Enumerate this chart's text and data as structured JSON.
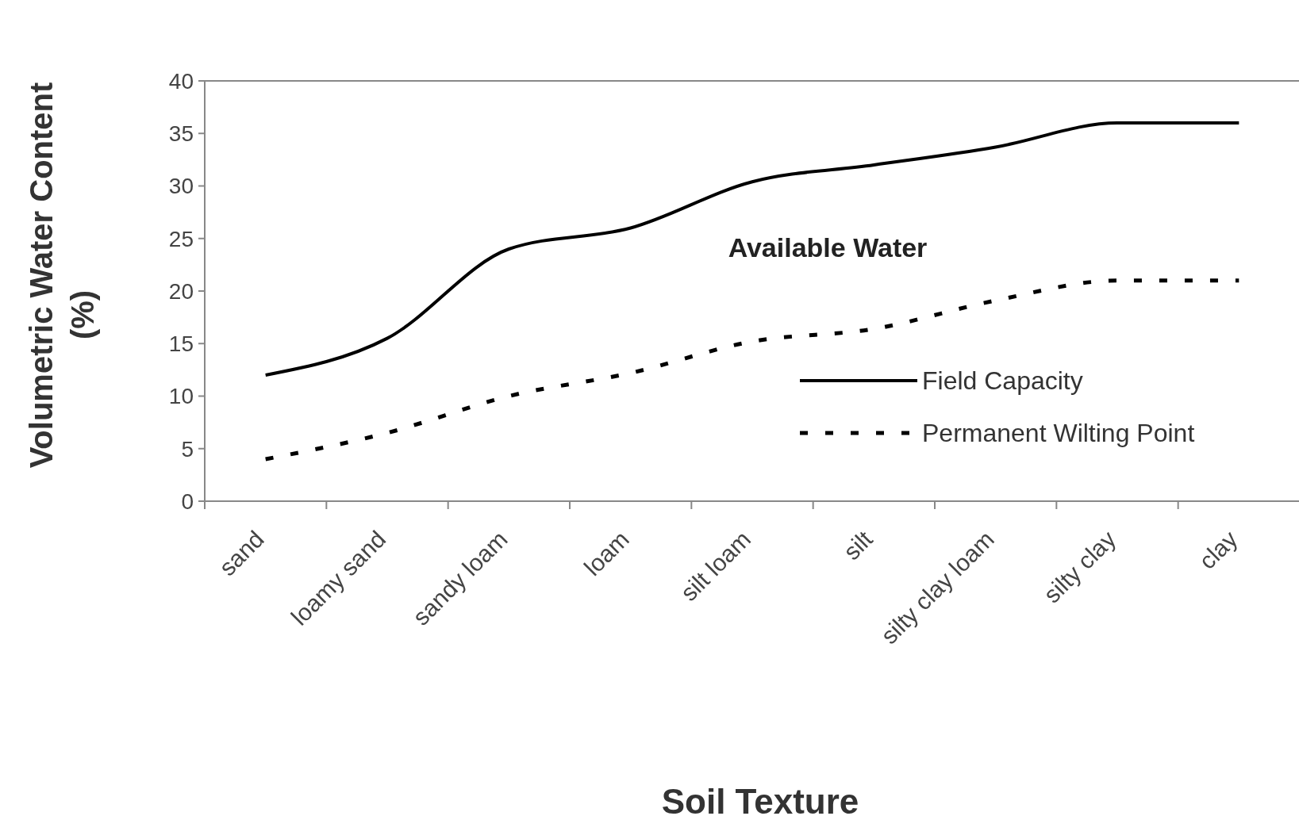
{
  "chart_data": {
    "type": "line",
    "xlabel": "Soil Texture",
    "ylabel": "Volumetric Water Content (%)",
    "categories": [
      "sand",
      "loamy sand",
      "sandy loam",
      "loam",
      "silt loam",
      "silt",
      "silty clay loam",
      "silty clay",
      "clay"
    ],
    "series": [
      {
        "name": "Field Capacity",
        "color": "#000000",
        "line_style": "solid",
        "values": [
          12,
          15.5,
          24,
          26,
          30.4,
          32,
          33.7,
          36,
          36
        ]
      },
      {
        "name": "Permanent Wilting Point",
        "color": "#000000",
        "line_style": "dashed",
        "values": [
          4,
          6.5,
          10,
          12.2,
          15.2,
          16.4,
          19.1,
          21,
          21
        ]
      }
    ],
    "ylim": [
      0,
      40
    ],
    "yticks": [
      0,
      5,
      10,
      15,
      20,
      25,
      30,
      35,
      40
    ],
    "grid": false,
    "legend": "right",
    "annotations": [
      "Available Water"
    ]
  }
}
